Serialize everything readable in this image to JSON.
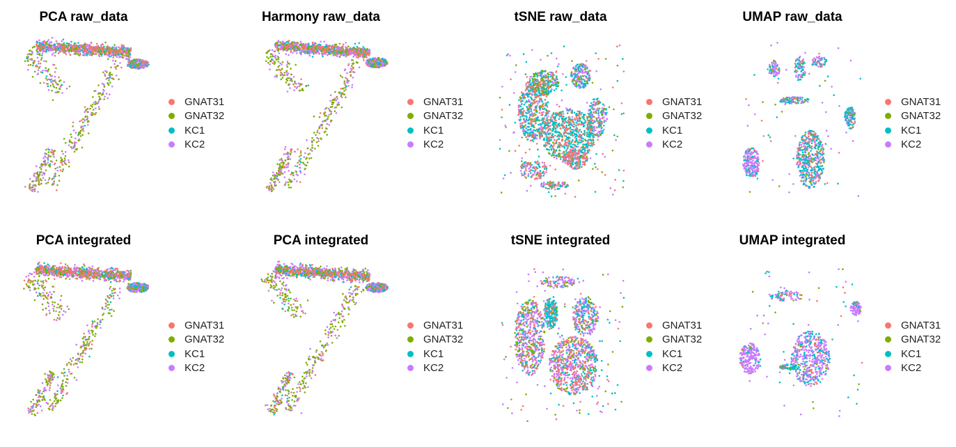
{
  "legend": {
    "entries": [
      {
        "label": "GNAT31",
        "color": "#F8766D"
      },
      {
        "label": "GNAT32",
        "color": "#7CAE00"
      },
      {
        "label": "KC1",
        "color": "#00BFC4"
      },
      {
        "label": "KC2",
        "color": "#C77CFF"
      }
    ]
  },
  "chart_data": [
    {
      "type": "scatter",
      "title": "PCA raw_data",
      "embedding": "PCA",
      "series": [
        {
          "name": "GNAT31"
        },
        {
          "name": "GNAT32"
        },
        {
          "name": "KC1"
        },
        {
          "name": "KC2"
        }
      ]
    },
    {
      "type": "scatter",
      "title": "Harmony raw_data",
      "embedding": "Harmony",
      "series": [
        {
          "name": "GNAT31"
        },
        {
          "name": "GNAT32"
        },
        {
          "name": "KC1"
        },
        {
          "name": "KC2"
        }
      ]
    },
    {
      "type": "scatter",
      "title": "tSNE raw_data",
      "embedding": "tSNE",
      "series": [
        {
          "name": "GNAT31"
        },
        {
          "name": "GNAT32"
        },
        {
          "name": "KC1"
        },
        {
          "name": "KC2"
        }
      ]
    },
    {
      "type": "scatter",
      "title": "UMAP raw_data",
      "embedding": "UMAP",
      "series": [
        {
          "name": "GNAT31"
        },
        {
          "name": "GNAT32"
        },
        {
          "name": "KC1"
        },
        {
          "name": "KC2"
        }
      ]
    },
    {
      "type": "scatter",
      "title": "PCA integrated",
      "embedding": "PCA",
      "series": [
        {
          "name": "GNAT31"
        },
        {
          "name": "GNAT32"
        },
        {
          "name": "KC1"
        },
        {
          "name": "KC2"
        }
      ]
    },
    {
      "type": "scatter",
      "title": "PCA integrated",
      "embedding": "PCA",
      "series": [
        {
          "name": "GNAT31"
        },
        {
          "name": "GNAT32"
        },
        {
          "name": "KC1"
        },
        {
          "name": "KC2"
        }
      ]
    },
    {
      "type": "scatter",
      "title": "tSNE integrated",
      "embedding": "tSNE",
      "series": [
        {
          "name": "GNAT31"
        },
        {
          "name": "GNAT32"
        },
        {
          "name": "KC1"
        },
        {
          "name": "KC2"
        }
      ]
    },
    {
      "type": "scatter",
      "title": "UMAP integrated",
      "embedding": "UMAP",
      "series": [
        {
          "name": "GNAT31"
        },
        {
          "name": "GNAT32"
        },
        {
          "name": "KC1"
        },
        {
          "name": "KC2"
        }
      ]
    }
  ]
}
